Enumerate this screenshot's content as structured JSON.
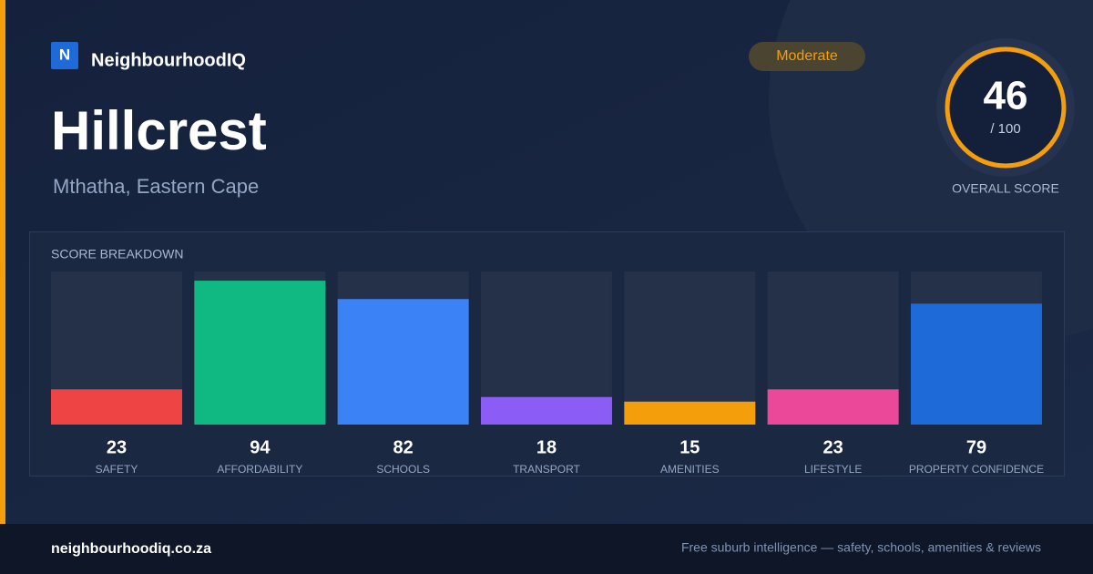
{
  "brand": "NeighbourhoodIQ",
  "logo_letter": "N",
  "suburb": "Hillcrest",
  "location": "Mthatha, Eastern Cape",
  "rating_badge": "Moderate",
  "overall": {
    "score": 46,
    "max_label": "/ 100",
    "label": "OVERALL SCORE"
  },
  "chart_data": {
    "type": "bar",
    "title": "SCORE BREAKDOWN",
    "categories": [
      "SAFETY",
      "AFFORDABILITY",
      "SCHOOLS",
      "TRANSPORT",
      "AMENITIES",
      "LIFESTYLE",
      "PROPERTY CONFIDENCE"
    ],
    "values": [
      23,
      94,
      82,
      18,
      15,
      23,
      79
    ],
    "colors": [
      "#ef4444",
      "#10b981",
      "#3b82f6",
      "#8b5cf6",
      "#f59e0b",
      "#ec4899",
      "#1d6ad8"
    ],
    "ylim": [
      0,
      100
    ]
  },
  "footer": {
    "site": "neighbourhoodiq.co.za",
    "tagline": "Free suburb intelligence — safety, schools, amenities & reviews"
  }
}
